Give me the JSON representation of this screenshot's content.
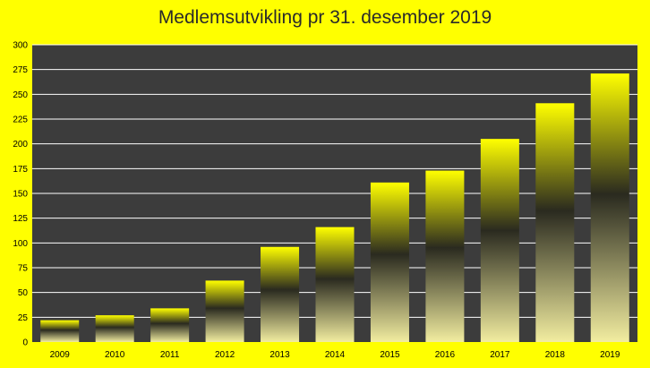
{
  "colors": {
    "page_background": "#ffff00",
    "plot_background": "#3c3c3c",
    "gridline": "#ffffff",
    "bar_light": "#ffff00",
    "bar_dark": "#2a2a1f",
    "bar_base": "#f2eda0"
  },
  "chart_data": {
    "type": "bar",
    "title": "Medlemsutvikling pr 31. desember 2019",
    "xlabel": "",
    "ylabel": "",
    "ylim": [
      0,
      300
    ],
    "yticks": [
      0,
      25,
      50,
      75,
      100,
      125,
      150,
      175,
      200,
      225,
      250,
      275,
      300
    ],
    "grid": true,
    "legend": "none",
    "categories": [
      "2009",
      "2010",
      "2011",
      "2012",
      "2013",
      "2014",
      "2015",
      "2016",
      "2017",
      "2018",
      "2019"
    ],
    "values": [
      22,
      27,
      34,
      62,
      96,
      116,
      161,
      173,
      205,
      241,
      271
    ]
  }
}
